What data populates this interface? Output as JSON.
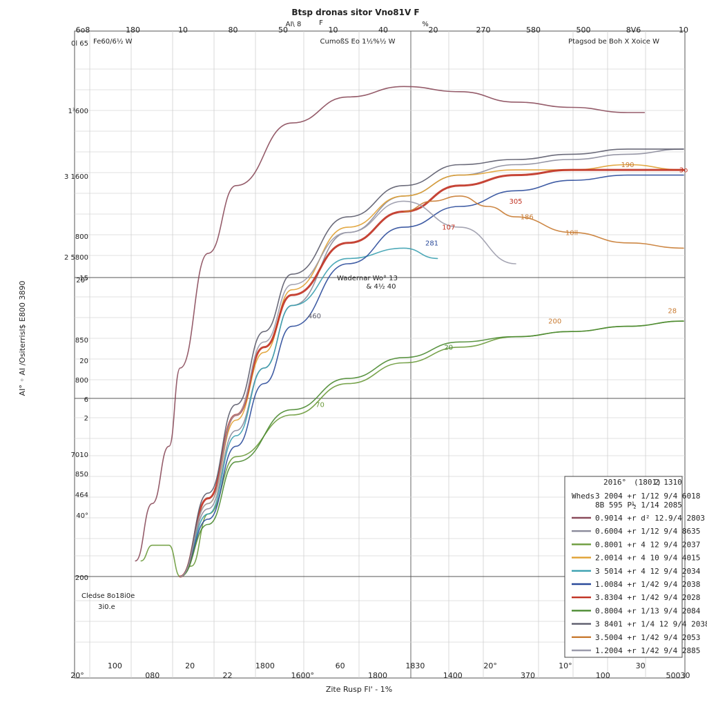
{
  "chart_data": {
    "type": "line",
    "title": "Btsp dronas sitor Vno81V F",
    "top_note_left": "AI\\ 8",
    "top_note_mid": "F",
    "top_note_right": "%",
    "xlabel": "Zite Rusp Fl' - 1%",
    "ylabel": "AI° ◦ AI /Ositerrisl$ E800 3890",
    "panel_labels": [
      "Fe60/6½ W",
      "CumoßS Eo 1½%½ W",
      "Ptagsod be Boh X Xoice W"
    ],
    "annotation": "Wadernar Wo° 13\n& 4½ 40",
    "bottom_left_note": "Cledse 8o18i0e\n3i0.e",
    "x_ticks_top": [
      "6o8",
      "180",
      "10",
      "80",
      "50",
      "10",
      "40",
      "20",
      "270",
      "580",
      "500",
      "8V6",
      "10"
    ],
    "x_ticks_bottom": [
      "20°",
      "100",
      "080",
      "20",
      "22",
      "1800",
      "1600°",
      "60",
      "1800",
      "1830",
      "1400",
      "20°",
      "370",
      "10°",
      "100",
      "30",
      "50030"
    ],
    "y_ticks": [
      "0l 65",
      "1³600",
      "3 1600",
      "800",
      "2 5800",
      "20°",
      "15",
      "850",
      "20",
      "800",
      "6",
      "2",
      "7010",
      "850",
      "464",
      "40°",
      "200"
    ],
    "xlim": [
      0,
      100
    ],
    "ylim": [
      0,
      100
    ],
    "grid": true,
    "legend_position": "bottom-right",
    "legend_header": [
      "2016°",
      "(1801)",
      "2 1310"
    ],
    "legend_subheader": [
      "Wheds",
      "3 2004 +r 1/12 9/4 6018",
      "8B 595 P½ 1/14 2085"
    ],
    "series": [
      {
        "name": "0.9014 +r d² 12.9/4 2803",
        "color": "#8a4a5a",
        "x": [
          2,
          5,
          8,
          10,
          15,
          20,
          30,
          40,
          50,
          60,
          70,
          80,
          90,
          93
        ],
        "y": [
          3,
          14,
          25,
          40,
          62,
          75,
          87,
          92,
          94,
          93,
          91,
          90,
          89,
          89
        ]
      },
      {
        "name": "0.6004 +r 1/12 9/4 8635",
        "color": "#8a8a9a",
        "x": [
          10,
          15,
          20,
          25,
          30,
          40,
          50,
          60,
          70,
          80,
          90,
          100
        ],
        "y": [
          0,
          13,
          28,
          40,
          52,
          66,
          73,
          77,
          79,
          80,
          81,
          82
        ]
      },
      {
        "name": "0.8001 +r 4 12 9/4 2037",
        "color": "#6a9a3a",
        "x": [
          3,
          5,
          8,
          10,
          12,
          15,
          20,
          30,
          40,
          50,
          60,
          70,
          80,
          90,
          100
        ],
        "y": [
          3,
          6,
          6,
          0,
          2,
          12,
          23,
          31,
          37,
          41,
          44,
          46,
          47,
          48,
          49
        ]
      },
      {
        "name": "2.0014 +r 4 10 9/4 4015",
        "color": "#e0a030",
        "x": [
          10,
          15,
          20,
          25,
          30,
          40,
          50,
          60,
          70,
          80,
          90,
          100
        ],
        "y": [
          0,
          14,
          30,
          43,
          55,
          67,
          73,
          77,
          78,
          78,
          79,
          78
        ]
      },
      {
        "name": "3 5014 +r 4 12 9/4 2034",
        "color": "#3aa0b0",
        "x": [
          10,
          15,
          20,
          25,
          30,
          40,
          50,
          56
        ],
        "y": [
          0,
          12,
          27,
          40,
          52,
          61,
          63,
          61
        ]
      },
      {
        "name": "1.0084 +r 1/42 9/4 2038",
        "color": "#2a4a9a",
        "x": [
          10,
          15,
          20,
          25,
          30,
          40,
          50,
          60,
          70,
          80,
          90,
          100
        ],
        "y": [
          0,
          11,
          25,
          37,
          48,
          60,
          67,
          71,
          74,
          76,
          77,
          77
        ]
      },
      {
        "name": "3.8304 +r 1/42 9/4 2028",
        "color": "#c03020",
        "x": [
          10,
          15,
          20,
          25,
          30,
          40,
          50,
          60,
          70,
          80,
          90,
          100
        ],
        "y": [
          0,
          15,
          31,
          44,
          54,
          64,
          70,
          75,
          77,
          78,
          78,
          78
        ]
      },
      {
        "name": "0.8004 +r 1/13 9/4 2084",
        "color": "#4a8a30",
        "x": [
          10,
          15,
          20,
          30,
          40,
          50,
          60,
          70,
          80,
          90,
          100
        ],
        "y": [
          0,
          10,
          22,
          32,
          38,
          42,
          45,
          46,
          47,
          48,
          49
        ]
      },
      {
        "name": "3 8401 +r 1/4 12 9/4 2038",
        "color": "#5a5a6a",
        "x": [
          10,
          15,
          20,
          25,
          30,
          40,
          50,
          60,
          70,
          80,
          90,
          100
        ],
        "y": [
          0,
          16,
          33,
          47,
          58,
          69,
          75,
          79,
          80,
          81,
          82,
          82
        ]
      },
      {
        "name": "3.5004 +r 1/42 9/4 2053",
        "color": "#c87a30",
        "x": [
          50,
          55,
          60,
          65,
          70,
          80,
          90,
          100
        ],
        "y": [
          70,
          72,
          73,
          71,
          69,
          66,
          64,
          63
        ]
      },
      {
        "name": "1.2004 +r 1/42 9/4 2885",
        "color": "#9a9aaa",
        "x": [
          10,
          15,
          20,
          25,
          30,
          40,
          50,
          60,
          70
        ],
        "y": [
          0,
          14,
          31,
          45,
          56,
          66,
          72,
          67,
          60
        ]
      }
    ],
    "point_labels": [
      {
        "text": "3o",
        "series": 6,
        "x": 100,
        "y": 77,
        "color": "#c03020"
      },
      {
        "text": "305",
        "series": 6,
        "x": 70,
        "y": 71,
        "color": "#c03020"
      },
      {
        "text": "107",
        "series": 6,
        "x": 58,
        "y": 66,
        "color": "#c03020"
      },
      {
        "text": "186",
        "series": 9,
        "x": 72,
        "y": 68,
        "color": "#c87a30"
      },
      {
        "text": "10ll",
        "series": 9,
        "x": 80,
        "y": 65,
        "color": "#c87a30"
      },
      {
        "text": "200",
        "series": 7,
        "x": 77,
        "y": 48,
        "color": "#c87a30"
      },
      {
        "text": "20",
        "series": 7,
        "x": 58,
        "y": 43,
        "color": "#4a8a30"
      },
      {
        "text": "28",
        "series": 7,
        "x": 98,
        "y": 50,
        "color": "#c87a30"
      },
      {
        "text": "460",
        "series": 1,
        "x": 34,
        "y": 49,
        "color": "#5a5a6a"
      },
      {
        "text": "70",
        "series": 7,
        "x": 35,
        "y": 32,
        "color": "#6a9a3a"
      },
      {
        "text": "281",
        "series": 4,
        "x": 55,
        "y": 63,
        "color": "#2a4a9a"
      },
      {
        "text": "190",
        "series": 3,
        "x": 90,
        "y": 78,
        "color": "#c87a30"
      }
    ]
  }
}
